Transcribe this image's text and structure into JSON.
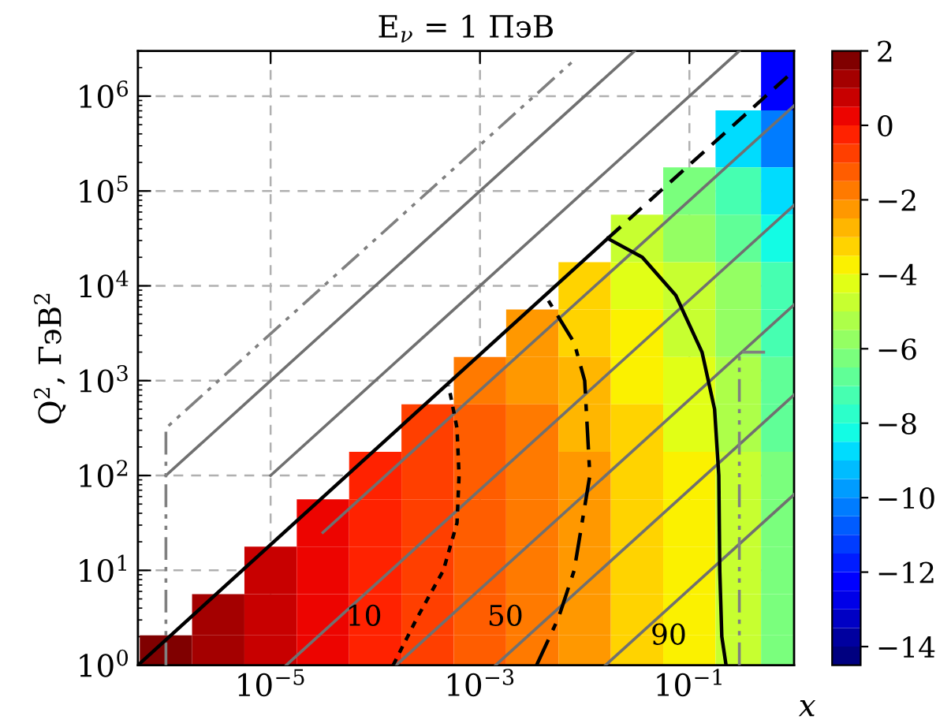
{
  "chart_data": {
    "type": "heatmap",
    "title": "E$_{ν}$ = 1 ПэВ",
    "xlabel": "x",
    "ylabel": "Q$^{2}$, ГэВ$^{2}$",
    "x": [
      1e-06,
      3.16e-06,
      1e-05,
      3.16e-05,
      0.0001,
      0.000316,
      0.001,
      0.00316,
      0.01,
      0.0316,
      0.1,
      0.316,
      0.74
    ],
    "y": [
      1580000.0,
      316000.0,
      100000.0,
      31600.0,
      10000.0,
      3160.0,
      1000.0,
      316,
      100,
      31.6,
      10,
      3.16,
      1.35
    ],
    "cells": [
      [
        null,
        null,
        null,
        null,
        null,
        null,
        null,
        null,
        null,
        null,
        null,
        null,
        -12.5
      ],
      [
        null,
        null,
        null,
        null,
        null,
        null,
        null,
        null,
        null,
        null,
        null,
        -9.0,
        -10.5
      ],
      [
        null,
        null,
        null,
        null,
        null,
        null,
        null,
        null,
        null,
        null,
        -6.5,
        -7.5,
        -9.0
      ],
      [
        null,
        null,
        null,
        null,
        null,
        null,
        null,
        null,
        null,
        -4.8,
        -5.6,
        -6.6,
        -8.1
      ],
      [
        null,
        null,
        null,
        null,
        null,
        null,
        null,
        null,
        -3.5,
        -4.2,
        -5.0,
        -6.0,
        -7.5
      ],
      [
        null,
        null,
        null,
        null,
        null,
        null,
        null,
        -2.4,
        -3.1,
        -3.8,
        -4.6,
        -5.6,
        -7.1
      ],
      [
        null,
        null,
        null,
        null,
        null,
        null,
        -1.6,
        -2.2,
        -2.9,
        -3.6,
        -4.4,
        -5.4,
        -6.9
      ],
      [
        null,
        null,
        null,
        null,
        null,
        -0.8,
        -1.4,
        -2.0,
        -2.7,
        -3.4,
        -4.2,
        -5.2,
        -6.7
      ],
      [
        null,
        null,
        null,
        null,
        -0.1,
        -0.6,
        -1.2,
        -1.8,
        -2.5,
        -3.2,
        -4.0,
        -5.0,
        -6.5
      ],
      [
        null,
        null,
        null,
        0.3,
        -0.1,
        -0.6,
        -1.2,
        -1.8,
        -2.5,
        -3.2,
        -4.0,
        -5.0,
        -6.5
      ],
      [
        null,
        null,
        0.7,
        0.3,
        -0.1,
        -0.6,
        -1.2,
        -1.8,
        -2.5,
        -3.2,
        -4.0,
        -5.0,
        -6.5
      ],
      [
        null,
        1.2,
        0.7,
        0.3,
        -0.1,
        -0.6,
        -1.2,
        -1.8,
        -2.5,
        -3.2,
        -4.0,
        -5.0,
        -6.5
      ],
      [
        1.6,
        1.2,
        0.7,
        0.3,
        -0.1,
        -0.6,
        -1.2,
        -1.8,
        -2.5,
        -3.2,
        -4.0,
        -5.0,
        -6.5
      ]
    ],
    "clim": [
      -14.5,
      2
    ],
    "cticks": [
      2,
      0,
      -2,
      -4,
      -6,
      -8,
      -10,
      -12,
      -14
    ],
    "series": [
      {
        "type": "line",
        "color": "#707070",
        "line_style": "solid",
        "x": [
          1e-06,
          0.03
        ],
        "values": [
          100,
          3000000.0
        ]
      },
      {
        "type": "line",
        "color": "#707070",
        "line_style": "solid",
        "x": [
          1e-05,
          0.3
        ],
        "values": [
          100,
          3000000.0
        ]
      },
      {
        "type": "line",
        "color": "#707070",
        "line_style": "solid",
        "x": [
          3.16e-05,
          1
        ],
        "values": [
          25.1,
          794000.0
        ]
      },
      {
        "type": "line",
        "color": "#707070",
        "line_style": "solid",
        "x": [
          1.41e-05,
          1
        ],
        "values": [
          1,
          70800.0
        ]
      },
      {
        "type": "line",
        "color": "#707070",
        "line_style": "solid",
        "x": [
          0.000158,
          1
        ],
        "values": [
          1,
          6310
        ]
      },
      {
        "type": "line",
        "color": "#707070",
        "line_style": "solid",
        "x": [
          0.00141,
          1
        ],
        "values": [
          1,
          708
        ]
      },
      {
        "type": "line",
        "color": "#707070",
        "line_style": "solid",
        "x": [
          0.0158,
          1
        ],
        "values": [
          1,
          63.1
        ]
      },
      {
        "type": "line",
        "color": "#808080",
        "line_style": "dashdotdot",
        "x": [
          1e-06,
          1e-06,
          0.00794
        ],
        "values": [
          1,
          316,
          2400000.0
        ]
      },
      {
        "type": "line",
        "color": "#808080",
        "line_style": "dashdotdot",
        "x": [
          0.3,
          0.3,
          0.55
        ],
        "values": [
          1,
          2000,
          2000
        ]
      },
      {
        "type": "line",
        "color": "#000000",
        "line_style": "solid",
        "x": [
          5.4e-07,
          0.0166
        ],
        "values": [
          1,
          31600.0
        ]
      },
      {
        "type": "line",
        "color": "#000000",
        "line_style": "dashed",
        "x": [
          0.0166,
          1
        ],
        "values": [
          31600.0,
          1860000.0
        ]
      },
      {
        "type": "line",
        "name": "10",
        "color": "#000000",
        "line_style": "dotted",
        "x": [
          0.000148,
          0.000251,
          0.000447,
          0.000603,
          0.000631,
          0.000603,
          0.000501
        ],
        "values": [
          1,
          3.16,
          10,
          31.6,
          100,
          316,
          891
        ]
      },
      {
        "type": "line",
        "name": "50",
        "color": "#000000",
        "line_style": "dashdot",
        "x": [
          0.00347,
          0.00562,
          0.00794,
          0.0112,
          0.01,
          0.00794,
          0.00447
        ],
        "values": [
          1,
          3.16,
          10,
          100,
          1000,
          2510,
          7080
        ]
      },
      {
        "type": "line",
        "name": "90",
        "color": "#000000",
        "line_style": "solid",
        "x": [
          0.224,
          0.204,
          0.195,
          0.191,
          0.174,
          0.132,
          0.0741,
          0.0355,
          0.0166
        ],
        "values": [
          1,
          2,
          10,
          100,
          501,
          2000,
          7940,
          20000.0,
          31600.0
        ]
      }
    ],
    "log": "xy",
    "xlim": [
      5.4e-07,
      1
    ],
    "ylim": [
      1,
      3000000.0
    ],
    "xticks": [
      {
        "value": 1e-05,
        "label": "10$^{−5}$"
      },
      {
        "value": 0.001,
        "label": "10$^{−3}$"
      },
      {
        "value": 0.1,
        "label": "10$^{−1}$"
      }
    ],
    "yticks": [
      {
        "value": 1,
        "label": "10$^{0}$"
      },
      {
        "value": 10,
        "label": "10$^{1}$"
      },
      {
        "value": 100,
        "label": "10$^{2}$"
      },
      {
        "value": 1000,
        "label": "10$^{3}$"
      },
      {
        "value": 10000,
        "label": "10$^{4}$"
      },
      {
        "value": 100000,
        "label": "10$^{5}$"
      },
      {
        "value": 1000000,
        "label": "10$^{6}$"
      }
    ],
    "grid": true
  }
}
